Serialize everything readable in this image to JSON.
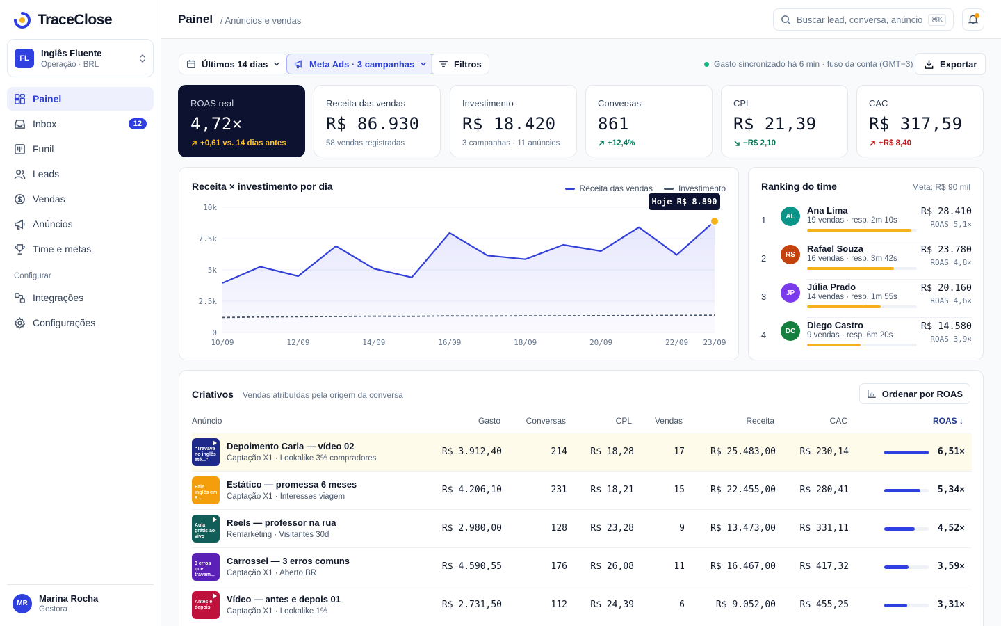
{
  "app": {
    "name": "TraceClose"
  },
  "workspace": {
    "initials": "FL",
    "name": "Inglês Fluente",
    "sub": "Operação · BRL"
  },
  "sidebar": {
    "items": [
      {
        "label": "Painel",
        "icon": "grid-icon",
        "active": true
      },
      {
        "label": "Inbox",
        "icon": "inbox-icon",
        "badge": "12"
      },
      {
        "label": "Funil",
        "icon": "kanban-icon"
      },
      {
        "label": "Leads",
        "icon": "users-icon"
      },
      {
        "label": "Vendas",
        "icon": "dollar-icon"
      },
      {
        "label": "Anúncios",
        "icon": "megaphone-icon"
      },
      {
        "label": "Time e metas",
        "icon": "trophy-icon"
      }
    ],
    "section_label": "Configurar",
    "config_items": [
      {
        "label": "Integrações",
        "icon": "integrations-icon"
      },
      {
        "label": "Configurações",
        "icon": "gear-icon"
      }
    ]
  },
  "user": {
    "initials": "MR",
    "name": "Marina Rocha",
    "role": "Gestora"
  },
  "header": {
    "title": "Painel",
    "breadcrumb": "/ Anúncios e vendas",
    "search_placeholder": "Buscar lead, conversa, anúncio",
    "search_shortcut": "⌘K"
  },
  "toolbar": {
    "period": "Últimos 14 dias",
    "source": "Meta Ads · 3 campanhas",
    "filters": "Filtros",
    "sync_status": "Gasto sincronizado há 6 min · fuso da conta (GMT−3)",
    "export": "Exportar"
  },
  "kpis": [
    {
      "label": "ROAS real",
      "value": "4,72×",
      "sub": "+0,61 vs. 14 dias antes",
      "trend": "up"
    },
    {
      "label": "Receita das vendas",
      "value": "R$ 86.930",
      "sub": "58 vendas registradas"
    },
    {
      "label": "Investimento",
      "value": "R$ 18.420",
      "sub": "3 campanhas · 11 anúncios"
    },
    {
      "label": "Conversas",
      "value": "861",
      "sub": "+12,4%",
      "trend": "up"
    },
    {
      "label": "CPL",
      "value": "R$ 21,39",
      "sub": "−R$ 2,10",
      "trend": "down"
    },
    {
      "label": "CAC",
      "value": "R$ 317,59",
      "sub": "+R$ 8,40",
      "trend": "up"
    }
  ],
  "chart_data": {
    "type": "line",
    "title": "Receita × investimento por dia",
    "x": [
      "10/09",
      "11/09",
      "12/09",
      "13/09",
      "14/09",
      "15/09",
      "16/09",
      "17/09",
      "18/09",
      "19/09",
      "20/09",
      "21/09",
      "22/09",
      "23/09"
    ],
    "x_ticks": [
      "10/09",
      "12/09",
      "14/09",
      "16/09",
      "18/09",
      "20/09",
      "22/09",
      "23/09"
    ],
    "y_ticks": [
      "0",
      "2.5k",
      "5k",
      "7.5k",
      "10k"
    ],
    "ylim": [
      0,
      10000
    ],
    "series": [
      {
        "name": "Receita das vendas",
        "color": "#3340d8",
        "values": [
          3950,
          5250,
          4500,
          6900,
          5100,
          4400,
          7950,
          6150,
          5850,
          7000,
          6500,
          8400,
          6200,
          8890
        ],
        "fill": true
      },
      {
        "name": "Investimento",
        "color": "#475569",
        "dashed": true,
        "values": [
          1200,
          1240,
          1260,
          1280,
          1300,
          1290,
          1320,
          1310,
          1330,
          1330,
          1340,
          1350,
          1360,
          1380
        ]
      }
    ],
    "tooltip": "Hoje R$ 8.890",
    "grid": true,
    "legend": "top-right"
  },
  "ranking": {
    "title": "Ranking do time",
    "meta": "Meta: R$ 90 mil",
    "rows": [
      {
        "pos": "1",
        "initials": "AL",
        "color": "#0d9488",
        "name": "Ana Lima",
        "desc": "19 vendas · resp. 2m 10s",
        "value": "R$ 28.410",
        "roas": "ROAS 5,1×",
        "progress": 0.947
      },
      {
        "pos": "2",
        "initials": "RS",
        "color": "#c2410c",
        "name": "Rafael Souza",
        "desc": "16 vendas · resp. 3m 42s",
        "value": "R$ 23.780",
        "roas": "ROAS 4,8×",
        "progress": 0.793
      },
      {
        "pos": "3",
        "initials": "JP",
        "color": "#7c3aed",
        "name": "Júlia Prado",
        "desc": "14 vendas · resp. 1m 55s",
        "value": "R$ 20.160",
        "roas": "ROAS 4,6×",
        "progress": 0.672
      },
      {
        "pos": "4",
        "initials": "DC",
        "color": "#15803d",
        "name": "Diego Castro",
        "desc": "9 vendas · resp. 6m 20s",
        "value": "R$ 14.580",
        "roas": "ROAS 3,9×",
        "progress": 0.486
      }
    ]
  },
  "creatives": {
    "title": "Criativos",
    "subtitle": "Vendas atribuídas pela origem da conversa",
    "sort_button": "Ordenar por ROAS",
    "columns": [
      "Anúncio",
      "Gasto",
      "Conversas",
      "CPL",
      "Vendas",
      "Receita",
      "CAC",
      "ROAS ↓"
    ],
    "rows": [
      {
        "thumb_text": "“Travava no inglês até...”",
        "thumb_color": "#1e2a8a",
        "play": true,
        "name": "Depoimento Carla — vídeo 02",
        "sub": "Captação X1 · Lookalike 3% compradores",
        "gasto": "R$ 3.912,40",
        "conversas": "214",
        "cpl": "R$ 18,28",
        "vendas": "17",
        "receita": "R$ 25.483,00",
        "cac": "R$ 230,14",
        "roas": "6,51×",
        "roas_level": 1.0
      },
      {
        "thumb_text": "Fale inglês em 6...",
        "thumb_color": "#f59e0b",
        "play": false,
        "name": "Estático — promessa 6 meses",
        "sub": "Captação X1 · Interesses viagem",
        "gasto": "R$ 4.206,10",
        "conversas": "231",
        "cpl": "R$ 18,21",
        "vendas": "15",
        "receita": "R$ 22.455,00",
        "cac": "R$ 280,41",
        "roas": "5,34×",
        "roas_level": 0.82
      },
      {
        "thumb_text": "Aula grátis ao vivo",
        "thumb_color": "#115e59",
        "play": true,
        "name": "Reels — professor na rua",
        "sub": "Remarketing · Visitantes 30d",
        "gasto": "R$ 2.980,00",
        "conversas": "128",
        "cpl": "R$ 23,28",
        "vendas": "9",
        "receita": "R$ 13.473,00",
        "cac": "R$ 331,11",
        "roas": "4,52×",
        "roas_level": 0.69
      },
      {
        "thumb_text": "3 erros que travam...",
        "thumb_color": "#5b21b6",
        "play": false,
        "name": "Carrossel — 3 erros comuns",
        "sub": "Captação X1 · Aberto BR",
        "gasto": "R$ 4.590,55",
        "conversas": "176",
        "cpl": "R$ 26,08",
        "vendas": "11",
        "receita": "R$ 16.467,00",
        "cac": "R$ 417,32",
        "roas": "3,59×",
        "roas_level": 0.55
      },
      {
        "thumb_text": "Antes e depois",
        "thumb_color": "#be123c",
        "play": true,
        "name": "Vídeo — antes e depois 01",
        "sub": "Captação X1 · Lookalike 1%",
        "gasto": "R$ 2.731,50",
        "conversas": "112",
        "cpl": "R$ 24,39",
        "vendas": "6",
        "receita": "R$ 9.052,00",
        "cac": "R$ 455,25",
        "roas": "3,31×",
        "roas_level": 0.51
      }
    ]
  }
}
